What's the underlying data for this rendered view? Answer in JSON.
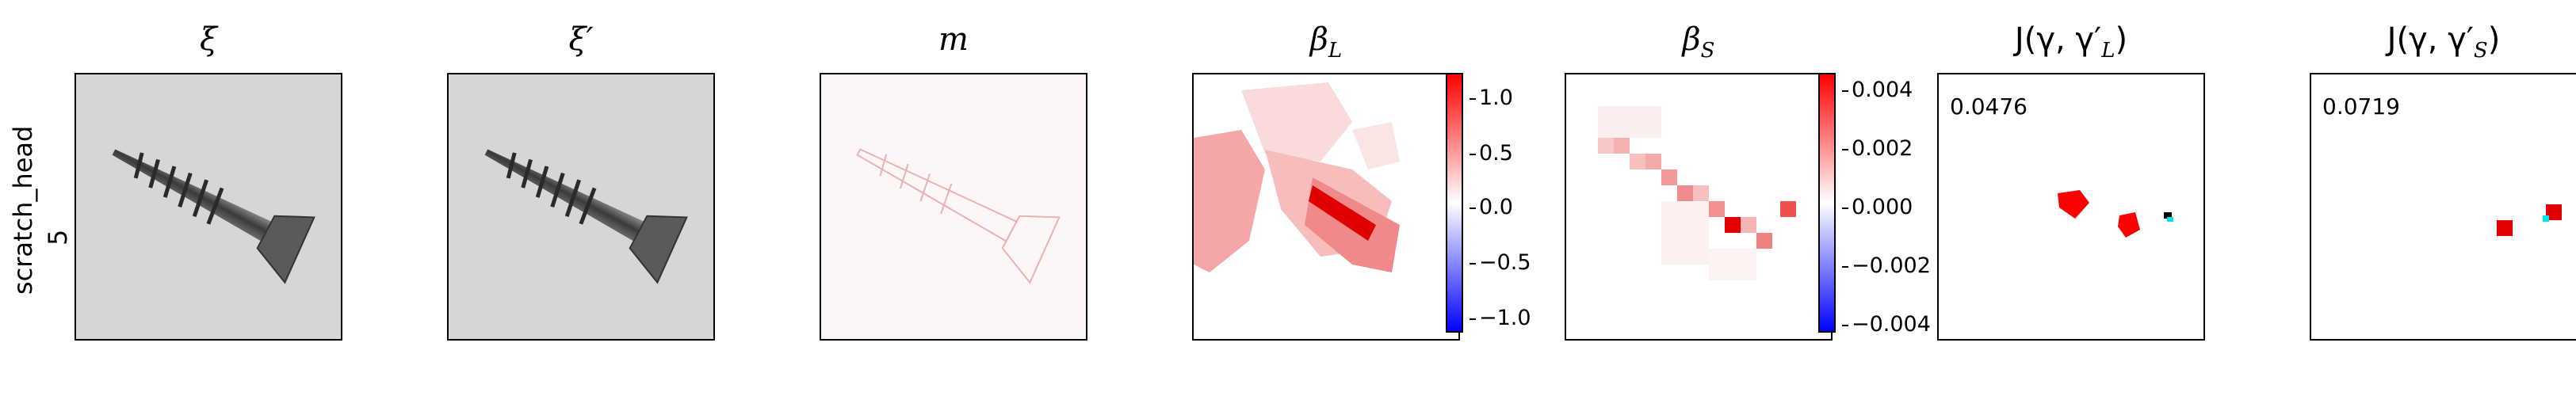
{
  "row_label": {
    "line1": "scratch_head",
    "line2": "5"
  },
  "panels": [
    {
      "title": "ξ"
    },
    {
      "title": "ξ′"
    },
    {
      "title": "m"
    },
    {
      "title_base": "β",
      "title_sub": "L"
    },
    {
      "title_base": "β",
      "title_sub": "S"
    },
    {
      "title_j": "J(γ, γ′",
      "title_sub": "L",
      "title_end": ")",
      "score": "0.0476"
    },
    {
      "title_j": "J(γ, γ′",
      "title_sub": "S",
      "title_end": ")",
      "score": "0.0719"
    }
  ],
  "colorbar_L": {
    "ticks": [
      "1.0",
      "0.5",
      "0.0",
      "−0.5",
      "−1.0"
    ]
  },
  "colorbar_S": {
    "ticks": [
      "0.004",
      "0.002",
      "0.000",
      "−0.002",
      "−0.004"
    ]
  },
  "colors": {
    "positive": "#ff0000",
    "negative": "#0000ff",
    "overlay": "#00e5e5"
  }
}
